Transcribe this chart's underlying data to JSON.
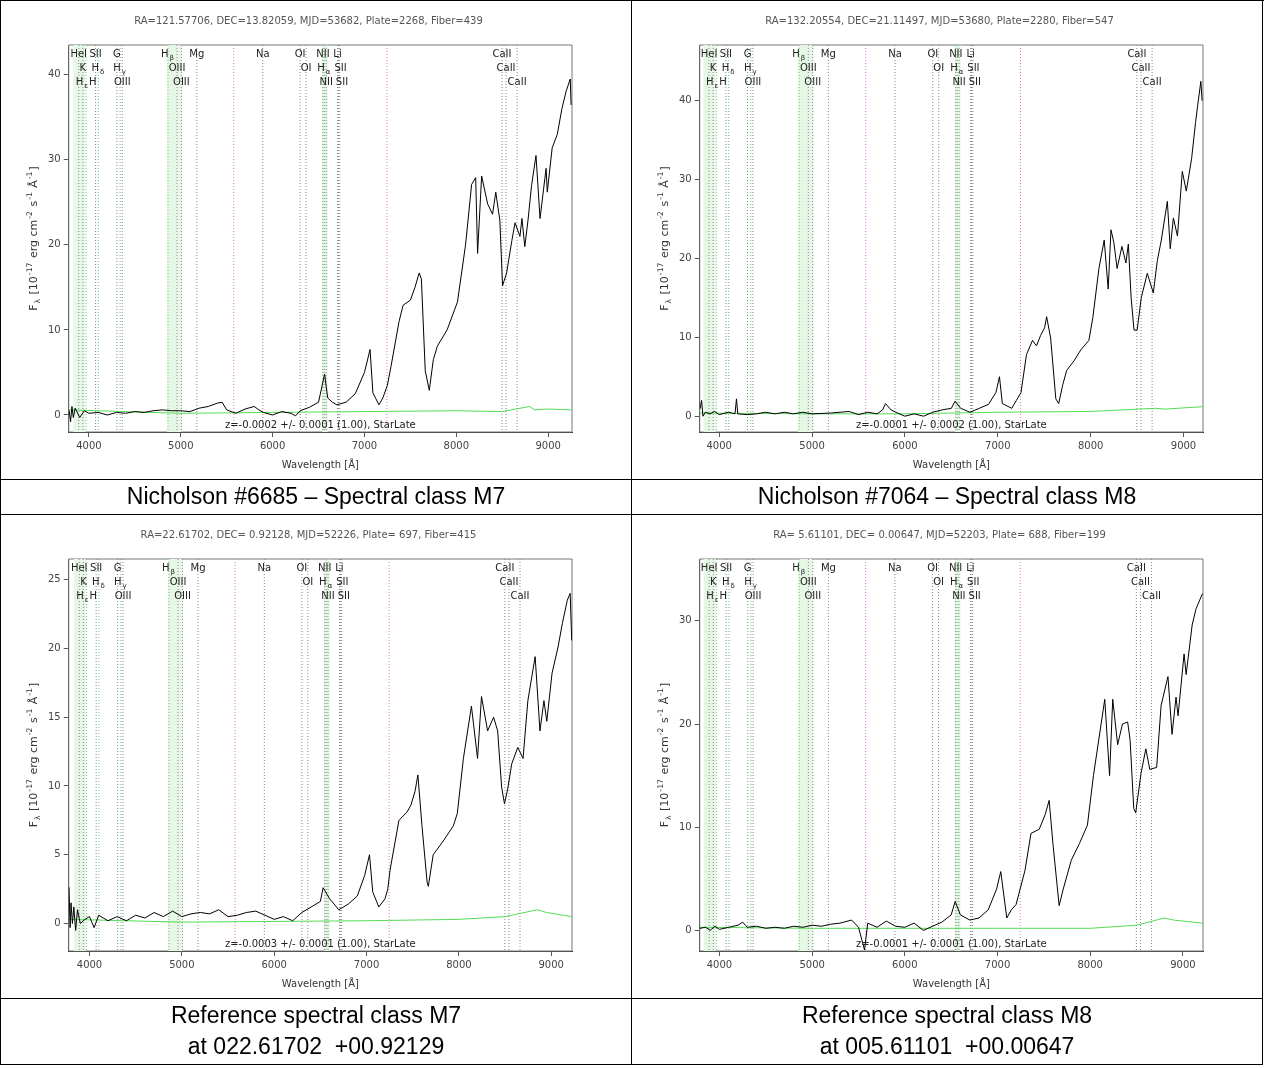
{
  "chart_data": [
    {
      "type": "line",
      "title": "RA=121.57706, DEC=13.82059, MJD=53682, Plate=2268, Fiber=439",
      "xlabel": "Wavelength [Å]",
      "ylabel": "F$_{λ}$ [10$^{-17}$ erg cm$^{-2}$ s$^{-1}$ Å$^{-1}$]",
      "marker": "none",
      "line_style": "solid",
      "xlim": [
        3780,
        9260
      ],
      "xticks": [
        4000,
        5000,
        6000,
        7000,
        8000,
        9000
      ],
      "ylim": [
        -2,
        43.5
      ],
      "yticks": [
        0,
        10,
        20,
        30,
        40
      ],
      "series": [
        {
          "color": "#000000",
          "x": [
            3785,
            3800,
            3815,
            3830,
            3850,
            3900,
            3950,
            4000,
            4100,
            4200,
            4300,
            4400,
            4500,
            4600,
            4700,
            4800,
            4900,
            5000,
            5100,
            5200,
            5300,
            5400,
            5450,
            5500,
            5600,
            5700,
            5800,
            5850,
            5900,
            6000,
            6100,
            6200,
            6250,
            6300,
            6400,
            6500,
            6566,
            6600,
            6650,
            6700,
            6800,
            6900,
            7000,
            7061,
            7092,
            7158,
            7200,
            7250,
            7289,
            7377,
            7421,
            7500,
            7550,
            7596,
            7620,
            7662,
            7706,
            7750,
            7794,
            7900,
            8013,
            8101,
            8167,
            8211,
            8232,
            8276,
            8342,
            8395,
            8430,
            8474,
            8504,
            8548,
            8605,
            8640,
            8693,
            8715,
            8746,
            8781,
            8820,
            8868,
            8912,
            8978,
            8991,
            9044,
            9100,
            9150,
            9197,
            9241,
            9250
          ],
          "values": [
            0.5,
            -0.8,
            1.0,
            -0.3,
            0.8,
            -0.3,
            0.5,
            0.2,
            0.3,
            0.0,
            0.3,
            0.2,
            0.4,
            0.3,
            0.5,
            0.6,
            0.5,
            0.5,
            0.4,
            0.8,
            1.0,
            1.4,
            1.5,
            0.6,
            0.2,
            0.7,
            1.0,
            0.6,
            0.3,
            0.0,
            0.4,
            0.2,
            -0.1,
            0.5,
            0.9,
            1.5,
            4.8,
            2.0,
            1.5,
            1.2,
            1.5,
            2.5,
            5.0,
            7.7,
            2.6,
            1.2,
            2.0,
            3.5,
            5.7,
            11.0,
            12.9,
            13.5,
            15.0,
            16.7,
            16.0,
            5.2,
            2.9,
            6.5,
            8.1,
            10.0,
            13.3,
            20.0,
            27.1,
            27.9,
            19.0,
            28.1,
            24.8,
            23.6,
            26.2,
            22.9,
            15.2,
            16.7,
            20.5,
            22.6,
            21.0,
            23.1,
            19.8,
            22.9,
            27.0,
            30.5,
            23.1,
            29.0,
            26.2,
            31.4,
            33.0,
            36.0,
            38.1,
            39.5,
            36.5
          ]
        },
        {
          "color": "#55dd55",
          "x": [
            3785,
            5000,
            6000,
            7000,
            8000,
            8500,
            8800,
            8850,
            9000,
            9250
          ],
          "values": [
            0.6,
            0.2,
            0.3,
            0.4,
            0.5,
            0.4,
            1.0,
            0.6,
            0.7,
            0.6
          ]
        }
      ],
      "bands": [
        {
          "axis": "x",
          "from": 3830,
          "to": 3960,
          "color": "#e6f7e6"
        },
        {
          "axis": "x",
          "from": 4850,
          "to": 5010,
          "color": "#e6f7e6"
        },
        {
          "axis": "x",
          "from": 6540,
          "to": 6600,
          "color": "#e6f7e6"
        }
      ],
      "ref_lines": [
        {
          "axis": "x",
          "value": 3889,
          "label": "HeI",
          "color": "#888888",
          "line_style": "dotted"
        },
        {
          "axis": "x",
          "value": 3934,
          "label": "K",
          "color": "#888888",
          "line_style": "dotted"
        },
        {
          "axis": "x",
          "value": 3969,
          "label": "H$_{ε}$H",
          "color": "#66cc66",
          "line_style": "dotted"
        },
        {
          "axis": "x",
          "value": 4072,
          "label": "SII",
          "color": "#888888",
          "line_style": "dotted"
        },
        {
          "axis": "x",
          "value": 4102,
          "label": "H$_{δ}$",
          "color": "#66cc66",
          "line_style": "dotted"
        },
        {
          "axis": "x",
          "value": 4305,
          "label": "G",
          "color": "#888888",
          "line_style": "dotted"
        },
        {
          "axis": "x",
          "value": 4340,
          "label": "H$_{γ}$",
          "color": "#66cc66",
          "line_style": "dotted"
        },
        {
          "axis": "x",
          "value": 4363,
          "label": "OIII",
          "color": "#888888",
          "line_style": "dotted"
        },
        {
          "axis": "x",
          "value": 4861,
          "label": "H$_{β}$",
          "color": "#66cc66",
          "line_style": "dotted"
        },
        {
          "axis": "x",
          "value": 4959,
          "label": "OIII",
          "color": "#888888",
          "line_style": "dotted"
        },
        {
          "axis": "x",
          "value": 5007,
          "label": "OIII",
          "color": "#888888",
          "line_style": "dotted"
        },
        {
          "axis": "x",
          "value": 5175,
          "label": "Mg",
          "color": "#888888",
          "line_style": "dotted"
        },
        {
          "axis": "x",
          "value": 5577,
          "label": null,
          "color": "#dd77dd",
          "line_style": "dotted"
        },
        {
          "axis": "x",
          "value": 5893,
          "label": "Na",
          "color": "#888888",
          "line_style": "dotted"
        },
        {
          "axis": "x",
          "value": 6300,
          "label": "OI",
          "color": "#888888",
          "line_style": "dotted"
        },
        {
          "axis": "x",
          "value": 6364,
          "label": "OI",
          "color": "#888888",
          "line_style": "dotted"
        },
        {
          "axis": "x",
          "value": 6548,
          "label": "NII",
          "color": "#888888",
          "line_style": "dotted"
        },
        {
          "axis": "x",
          "value": 6563,
          "label": "H$_{α}$",
          "color": "#66cc66",
          "line_style": "dotted"
        },
        {
          "axis": "x",
          "value": 6583,
          "label": "NII",
          "color": "#888888",
          "line_style": "dotted"
        },
        {
          "axis": "x",
          "value": 6707,
          "label": "Li",
          "color": "#888888",
          "line_style": "dotted"
        },
        {
          "axis": "x",
          "value": 6716,
          "label": "SII",
          "color": "#888888",
          "line_style": "dotted"
        },
        {
          "axis": "x",
          "value": 6731,
          "label": "SII",
          "color": "#888888",
          "line_style": "dotted"
        },
        {
          "axis": "x",
          "value": 7245,
          "label": null,
          "color": "#dd77dd",
          "line_style": "dotted"
        },
        {
          "axis": "x",
          "value": 8498,
          "label": "CaII",
          "color": "#888888",
          "line_style": "dotted"
        },
        {
          "axis": "x",
          "value": 8542,
          "label": "CaII",
          "color": "#888888",
          "line_style": "dotted"
        },
        {
          "axis": "x",
          "value": 8662,
          "label": "CaII",
          "color": "#888888",
          "line_style": "dotted"
        }
      ],
      "annotations": [
        "z=-0.0002 +/- 0.0001 (1.00), StarLate",
        "Nicholson #6685 – Spectral class M7"
      ]
    },
    {
      "type": "line",
      "title": "RA=132.20554, DEC=21.11497, MJD=53680, Plate=2280, Fiber=547",
      "xlabel": "Wavelength [Å]",
      "ylabel": "F$_{λ}$ [10$^{-17}$ erg cm$^{-2}$ s$^{-1}$ Å$^{-1}$]",
      "marker": "none",
      "line_style": "solid",
      "xlim": [
        3790,
        9210
      ],
      "xticks": [
        4000,
        5000,
        6000,
        7000,
        8000,
        9000
      ],
      "ylim": [
        -2,
        47
      ],
      "yticks": [
        0,
        10,
        20,
        30,
        40
      ],
      "series": [
        {
          "color": "#000000",
          "x": [
            3795,
            3810,
            3825,
            3850,
            3900,
            3950,
            4000,
            4100,
            4170,
            4186,
            4200,
            4300,
            4400,
            4500,
            4600,
            4700,
            4800,
            4900,
            5000,
            5200,
            5400,
            5500,
            5600,
            5700,
            5760,
            5791,
            5850,
            5900,
            6000,
            6100,
            6200,
            6300,
            6400,
            6500,
            6540,
            6600,
            6700,
            6800,
            6900,
            6980,
            7018,
            7049,
            7150,
            7200,
            7250,
            7309,
            7374,
            7417,
            7460,
            7504,
            7526,
            7569,
            7625,
            7656,
            7700,
            7742,
            7820,
            7894,
            7981,
            8024,
            8089,
            8146,
            8189,
            8219,
            8250,
            8285,
            8337,
            8380,
            8406,
            8436,
            8467,
            8501,
            8545,
            8610,
            8675,
            8718,
            8761,
            8826,
            8857,
            8891,
            8935,
            8987,
            9030,
            9087,
            9130,
            9152,
            9187,
            9200
          ],
          "values": [
            1.0,
            2.0,
            0.0,
            0.5,
            0.3,
            0.6,
            0.2,
            0.5,
            0.3,
            2.2,
            0.3,
            0.2,
            0.3,
            0.5,
            0.3,
            0.5,
            0.3,
            0.5,
            0.3,
            0.4,
            0.6,
            0.2,
            0.5,
            0.3,
            0.8,
            1.6,
            0.8,
            0.5,
            0.0,
            0.3,
            0.0,
            0.5,
            0.8,
            1.0,
            1.9,
            1.0,
            0.5,
            1.0,
            1.5,
            3.0,
            5.0,
            1.6,
            1.0,
            2.0,
            3.0,
            7.8,
            9.6,
            8.9,
            10.2,
            11.2,
            12.6,
            9.9,
            2.2,
            1.6,
            4.0,
            5.8,
            7.0,
            8.4,
            9.6,
            12.5,
            18.7,
            22.3,
            16.1,
            23.6,
            22.0,
            18.7,
            21.5,
            19.4,
            21.8,
            15.0,
            10.9,
            10.9,
            15.0,
            18.1,
            15.6,
            19.7,
            22.3,
            27.2,
            21.2,
            25.1,
            22.8,
            31.0,
            28.5,
            32.6,
            37.2,
            39.3,
            42.4,
            40.0
          ]
        },
        {
          "color": "#55dd55",
          "x": [
            3795,
            5000,
            6000,
            7000,
            8000,
            8700,
            8800,
            9200
          ],
          "values": [
            0.4,
            0.3,
            0.3,
            0.5,
            0.6,
            1.0,
            0.9,
            1.2
          ]
        }
      ],
      "bands": [
        {
          "axis": "x",
          "from": 3830,
          "to": 3960,
          "color": "#e6f7e6"
        },
        {
          "axis": "x",
          "from": 4850,
          "to": 5010,
          "color": "#e6f7e6"
        },
        {
          "axis": "x",
          "from": 6540,
          "to": 6600,
          "color": "#e6f7e6"
        }
      ],
      "ref_lines": [
        {
          "axis": "x",
          "value": 3889,
          "label": "HeI",
          "color": "#888888",
          "line_style": "dotted"
        },
        {
          "axis": "x",
          "value": 3934,
          "label": "K",
          "color": "#888888",
          "line_style": "dotted"
        },
        {
          "axis": "x",
          "value": 3969,
          "label": "H$_{ε}$H",
          "color": "#66cc66",
          "line_style": "dotted"
        },
        {
          "axis": "x",
          "value": 4072,
          "label": "SII",
          "color": "#888888",
          "line_style": "dotted"
        },
        {
          "axis": "x",
          "value": 4102,
          "label": "H$_{δ}$",
          "color": "#66cc66",
          "line_style": "dotted"
        },
        {
          "axis": "x",
          "value": 4305,
          "label": "G",
          "color": "#888888",
          "line_style": "dotted"
        },
        {
          "axis": "x",
          "value": 4340,
          "label": "H$_{γ}$",
          "color": "#66cc66",
          "line_style": "dotted"
        },
        {
          "axis": "x",
          "value": 4363,
          "label": "OIII",
          "color": "#888888",
          "line_style": "dotted"
        },
        {
          "axis": "x",
          "value": 4861,
          "label": "H$_{β}$",
          "color": "#66cc66",
          "line_style": "dotted"
        },
        {
          "axis": "x",
          "value": 4959,
          "label": "OIII",
          "color": "#888888",
          "line_style": "dotted"
        },
        {
          "axis": "x",
          "value": 5007,
          "label": "OIII",
          "color": "#888888",
          "line_style": "dotted"
        },
        {
          "axis": "x",
          "value": 5175,
          "label": "Mg",
          "color": "#888888",
          "line_style": "dotted"
        },
        {
          "axis": "x",
          "value": 5577,
          "label": null,
          "color": "#dd77dd",
          "line_style": "dotted"
        },
        {
          "axis": "x",
          "value": 5893,
          "label": "Na",
          "color": "#888888",
          "line_style": "dotted"
        },
        {
          "axis": "x",
          "value": 6300,
          "label": "OI",
          "color": "#888888",
          "line_style": "dotted"
        },
        {
          "axis": "x",
          "value": 6364,
          "label": "OI",
          "color": "#888888",
          "line_style": "dotted"
        },
        {
          "axis": "x",
          "value": 6548,
          "label": "NII",
          "color": "#888888",
          "line_style": "dotted"
        },
        {
          "axis": "x",
          "value": 6563,
          "label": "H$_{α}$",
          "color": "#66cc66",
          "line_style": "dotted"
        },
        {
          "axis": "x",
          "value": 6583,
          "label": "NII",
          "color": "#888888",
          "line_style": "dotted"
        },
        {
          "axis": "x",
          "value": 6707,
          "label": "Li",
          "color": "#888888",
          "line_style": "dotted"
        },
        {
          "axis": "x",
          "value": 6716,
          "label": "SII",
          "color": "#888888",
          "line_style": "dotted"
        },
        {
          "axis": "x",
          "value": 6731,
          "label": "SII",
          "color": "#888888",
          "line_style": "dotted"
        },
        {
          "axis": "x",
          "value": 7245,
          "label": null,
          "color": "#dd77dd",
          "line_style": "dotted"
        },
        {
          "axis": "x",
          "value": 8498,
          "label": "CaII",
          "color": "#888888",
          "line_style": "dotted"
        },
        {
          "axis": "x",
          "value": 8542,
          "label": "CaII",
          "color": "#888888",
          "line_style": "dotted"
        },
        {
          "axis": "x",
          "value": 8662,
          "label": "CaII",
          "color": "#888888",
          "line_style": "dotted"
        }
      ],
      "annotations": [
        "z=-0.0001 +/- 0.0002 (1.00), StarLate",
        "Nicholson #7064 – Spectral class M8"
      ]
    },
    {
      "type": "line",
      "title": "RA=22.61702, DEC= 0.92128, MJD=52226, Plate= 697, Fiber=415",
      "xlabel": "Wavelength [Å]",
      "ylabel": "F$_{λ}$ [10$^{-17}$ erg cm$^{-2}$ s$^{-1}$ Å$^{-1}$]",
      "marker": "none",
      "line_style": "solid",
      "xlim": [
        3775,
        9225
      ],
      "xticks": [
        4000,
        5000,
        6000,
        7000,
        8000,
        9000
      ],
      "ylim": [
        -2,
        26.5
      ],
      "yticks": [
        0,
        5,
        10,
        15,
        20,
        25
      ],
      "series": [
        {
          "color": "#000000",
          "x": [
            3778,
            3790,
            3800,
            3815,
            3830,
            3850,
            3870,
            3900,
            3950,
            4000,
            4050,
            4100,
            4200,
            4300,
            4400,
            4500,
            4600,
            4700,
            4800,
            4900,
            5000,
            5100,
            5200,
            5300,
            5400,
            5500,
            5600,
            5700,
            5800,
            5900,
            6000,
            6100,
            6200,
            6300,
            6400,
            6500,
            6530,
            6600,
            6700,
            6800,
            6900,
            6980,
            7032,
            7067,
            7133,
            7200,
            7230,
            7255,
            7351,
            7438,
            7480,
            7525,
            7556,
            7599,
            7656,
            7669,
            7722,
            7831,
            7940,
            7983,
            8049,
            8136,
            8202,
            8245,
            8311,
            8376,
            8420,
            8463,
            8494,
            8529,
            8572,
            8638,
            8695,
            8747,
            8826,
            8878,
            8921,
            8952,
            9009,
            9074,
            9120,
            9174,
            9205,
            9222
          ],
          "values": [
            2.6,
            -0.3,
            1.5,
            0.0,
            1.2,
            -0.5,
            1.0,
            0.0,
            0.3,
            0.5,
            -0.3,
            0.6,
            0.2,
            0.5,
            0.2,
            0.6,
            0.4,
            0.8,
            0.5,
            0.9,
            0.5,
            0.7,
            0.8,
            0.7,
            1.0,
            0.5,
            0.6,
            0.8,
            0.9,
            0.6,
            0.3,
            0.5,
            0.2,
            0.8,
            1.2,
            1.6,
            2.6,
            1.8,
            1.0,
            1.4,
            2.0,
            3.5,
            5.0,
            2.3,
            1.2,
            1.8,
            2.5,
            3.9,
            7.5,
            8.1,
            8.6,
            9.6,
            10.8,
            7.2,
            3.0,
            2.7,
            5.0,
            6.0,
            7.1,
            8.0,
            12.0,
            15.8,
            12.0,
            16.5,
            14.0,
            15.0,
            14.0,
            9.9,
            8.7,
            9.8,
            11.6,
            12.8,
            12.0,
            16.2,
            19.4,
            14.0,
            16.2,
            14.7,
            18.2,
            20.1,
            21.8,
            23.5,
            24.0,
            20.6
          ]
        },
        {
          "color": "#55dd55",
          "x": [
            3778,
            5000,
            7000,
            8000,
            8500,
            8850,
            8950,
            9222
          ],
          "values": [
            0.3,
            0.1,
            0.2,
            0.3,
            0.5,
            1.0,
            0.8,
            0.5
          ]
        }
      ],
      "bands": [
        {
          "axis": "x",
          "from": 3830,
          "to": 3960,
          "color": "#e6f7e6"
        },
        {
          "axis": "x",
          "from": 4850,
          "to": 5010,
          "color": "#e6f7e6"
        },
        {
          "axis": "x",
          "from": 6540,
          "to": 6600,
          "color": "#e6f7e6"
        }
      ],
      "ref_lines": [
        {
          "axis": "x",
          "value": 3889,
          "label": "HeI",
          "color": "#888888",
          "line_style": "dotted"
        },
        {
          "axis": "x",
          "value": 3934,
          "label": "K",
          "color": "#888888",
          "line_style": "dotted"
        },
        {
          "axis": "x",
          "value": 3969,
          "label": "H$_{ε}$H",
          "color": "#66cc66",
          "line_style": "dotted"
        },
        {
          "axis": "x",
          "value": 4072,
          "label": "SII",
          "color": "#888888",
          "line_style": "dotted"
        },
        {
          "axis": "x",
          "value": 4102,
          "label": "H$_{δ}$",
          "color": "#66cc66",
          "line_style": "dotted"
        },
        {
          "axis": "x",
          "value": 4305,
          "label": "G",
          "color": "#888888",
          "line_style": "dotted"
        },
        {
          "axis": "x",
          "value": 4340,
          "label": "H$_{γ}$",
          "color": "#66cc66",
          "line_style": "dotted"
        },
        {
          "axis": "x",
          "value": 4363,
          "label": "OIII",
          "color": "#888888",
          "line_style": "dotted"
        },
        {
          "axis": "x",
          "value": 4861,
          "label": "H$_{β}$",
          "color": "#66cc66",
          "line_style": "dotted"
        },
        {
          "axis": "x",
          "value": 4959,
          "label": "OIII",
          "color": "#888888",
          "line_style": "dotted"
        },
        {
          "axis": "x",
          "value": 5007,
          "label": "OIII",
          "color": "#888888",
          "line_style": "dotted"
        },
        {
          "axis": "x",
          "value": 5175,
          "label": "Mg",
          "color": "#888888",
          "line_style": "dotted"
        },
        {
          "axis": "x",
          "value": 5577,
          "label": null,
          "color": "#dd77dd",
          "line_style": "dotted"
        },
        {
          "axis": "x",
          "value": 5893,
          "label": "Na",
          "color": "#888888",
          "line_style": "dotted"
        },
        {
          "axis": "x",
          "value": 6300,
          "label": "OI",
          "color": "#888888",
          "line_style": "dotted"
        },
        {
          "axis": "x",
          "value": 6364,
          "label": "OI",
          "color": "#888888",
          "line_style": "dotted"
        },
        {
          "axis": "x",
          "value": 6548,
          "label": "NII",
          "color": "#888888",
          "line_style": "dotted"
        },
        {
          "axis": "x",
          "value": 6563,
          "label": "H$_{α}$",
          "color": "#66cc66",
          "line_style": "dotted"
        },
        {
          "axis": "x",
          "value": 6583,
          "label": "NII",
          "color": "#888888",
          "line_style": "dotted"
        },
        {
          "axis": "x",
          "value": 6707,
          "label": "Li",
          "color": "#888888",
          "line_style": "dotted"
        },
        {
          "axis": "x",
          "value": 6716,
          "label": "SII",
          "color": "#888888",
          "line_style": "dotted"
        },
        {
          "axis": "x",
          "value": 6731,
          "label": "SII",
          "color": "#888888",
          "line_style": "dotted"
        },
        {
          "axis": "x",
          "value": 7245,
          "label": null,
          "color": "#dd77dd",
          "line_style": "dotted"
        },
        {
          "axis": "x",
          "value": 8498,
          "label": "CaII",
          "color": "#888888",
          "line_style": "dotted"
        },
        {
          "axis": "x",
          "value": 8542,
          "label": "CaII",
          "color": "#888888",
          "line_style": "dotted"
        },
        {
          "axis": "x",
          "value": 8662,
          "label": "CaII",
          "color": "#888888",
          "line_style": "dotted"
        }
      ],
      "annotations": [
        "z=-0.0003 +/- 0.0001 (1.00), StarLate",
        "Reference spectral class M7",
        "at 022.61702  +00.92129"
      ]
    },
    {
      "type": "line",
      "title": "RA= 5.61101, DEC= 0.00647, MJD=52203, Plate= 688, Fiber=199",
      "xlabel": "Wavelength [Å]",
      "ylabel": "F$_{λ}$ [10$^{-17}$ erg cm$^{-2}$ s$^{-1}$ Å$^{-1}$]",
      "marker": "none",
      "line_style": "solid",
      "xlim": [
        3787,
        9217
      ],
      "xticks": [
        4000,
        5000,
        6000,
        7000,
        8000,
        9000
      ],
      "ylim": [
        -2,
        36
      ],
      "yticks": [
        0,
        10,
        20,
        30
      ],
      "series": [
        {
          "color": "#000000",
          "x": [
            3790,
            3850,
            3900,
            3950,
            4000,
            4100,
            4200,
            4250,
            4300,
            4400,
            4500,
            4600,
            4700,
            4800,
            4900,
            5000,
            5100,
            5200,
            5300,
            5426,
            5500,
            5565,
            5600,
            5700,
            5800,
            5900,
            6000,
            6100,
            6200,
            6300,
            6400,
            6500,
            6543,
            6600,
            6700,
            6800,
            6900,
            6990,
            7035,
            7100,
            7150,
            7200,
            7296,
            7361,
            7450,
            7513,
            7557,
            7600,
            7665,
            7709,
            7796,
            7883,
            7970,
            8035,
            8157,
            8209,
            8243,
            8296,
            8348,
            8404,
            8430,
            8470,
            8491,
            8548,
            8600,
            8643,
            8717,
            8765,
            8839,
            8883,
            8926,
            8948,
            9013,
            9035,
            9100,
            9143,
            9209
          ],
          "values": [
            0.2,
            0.3,
            0.0,
            0.4,
            0.1,
            0.3,
            0.5,
            0.8,
            0.3,
            0.4,
            0.2,
            0.3,
            0.2,
            0.4,
            0.3,
            0.5,
            0.4,
            0.6,
            0.7,
            1.0,
            0.3,
            -1.9,
            0.7,
            0.3,
            0.9,
            0.4,
            0.3,
            0.7,
            0.0,
            0.4,
            0.8,
            1.5,
            2.8,
            1.5,
            1.0,
            1.2,
            2.0,
            4.0,
            5.7,
            1.2,
            2.0,
            2.5,
            5.8,
            9.4,
            9.8,
            11.2,
            12.6,
            8.2,
            2.4,
            4.0,
            6.8,
            8.4,
            10.2,
            15.0,
            22.4,
            15.0,
            22.4,
            18.0,
            20.0,
            20.2,
            18.5,
            11.8,
            11.4,
            15.2,
            17.6,
            15.6,
            15.8,
            21.8,
            24.6,
            19.0,
            22.6,
            20.8,
            26.8,
            24.8,
            29.6,
            31.2,
            32.6
          ]
        },
        {
          "color": "#55dd55",
          "x": [
            3790,
            5000,
            7000,
            8000,
            8500,
            8800,
            8900,
            9209
          ],
          "values": [
            0.3,
            0.2,
            0.2,
            0.2,
            0.5,
            1.2,
            1.0,
            0.7
          ]
        }
      ],
      "bands": [
        {
          "axis": "x",
          "from": 3830,
          "to": 3960,
          "color": "#e6f7e6"
        },
        {
          "axis": "x",
          "from": 4850,
          "to": 5010,
          "color": "#e6f7e6"
        },
        {
          "axis": "x",
          "from": 6540,
          "to": 6600,
          "color": "#e6f7e6"
        }
      ],
      "ref_lines": [
        {
          "axis": "x",
          "value": 3889,
          "label": "HeI",
          "color": "#888888",
          "line_style": "dotted"
        },
        {
          "axis": "x",
          "value": 3934,
          "label": "K",
          "color": "#888888",
          "line_style": "dotted"
        },
        {
          "axis": "x",
          "value": 3969,
          "label": "H$_{ε}$H",
          "color": "#66cc66",
          "line_style": "dotted"
        },
        {
          "axis": "x",
          "value": 4072,
          "label": "SII",
          "color": "#888888",
          "line_style": "dotted"
        },
        {
          "axis": "x",
          "value": 4102,
          "label": "H$_{δ}$",
          "color": "#66cc66",
          "line_style": "dotted"
        },
        {
          "axis": "x",
          "value": 4305,
          "label": "G",
          "color": "#888888",
          "line_style": "dotted"
        },
        {
          "axis": "x",
          "value": 4340,
          "label": "H$_{γ}$",
          "color": "#66cc66",
          "line_style": "dotted"
        },
        {
          "axis": "x",
          "value": 4363,
          "label": "OIII",
          "color": "#888888",
          "line_style": "dotted"
        },
        {
          "axis": "x",
          "value": 4861,
          "label": "H$_{β}$",
          "color": "#66cc66",
          "line_style": "dotted"
        },
        {
          "axis": "x",
          "value": 4959,
          "label": "OIII",
          "color": "#888888",
          "line_style": "dotted"
        },
        {
          "axis": "x",
          "value": 5007,
          "label": "OIII",
          "color": "#888888",
          "line_style": "dotted"
        },
        {
          "axis": "x",
          "value": 5175,
          "label": "Mg",
          "color": "#888888",
          "line_style": "dotted"
        },
        {
          "axis": "x",
          "value": 5577,
          "label": null,
          "color": "#dd77dd",
          "line_style": "dotted"
        },
        {
          "axis": "x",
          "value": 5893,
          "label": "Na",
          "color": "#888888",
          "line_style": "dotted"
        },
        {
          "axis": "x",
          "value": 6300,
          "label": "OI",
          "color": "#888888",
          "line_style": "dotted"
        },
        {
          "axis": "x",
          "value": 6364,
          "label": "OI",
          "color": "#888888",
          "line_style": "dotted"
        },
        {
          "axis": "x",
          "value": 6548,
          "label": "NII",
          "color": "#888888",
          "line_style": "dotted"
        },
        {
          "axis": "x",
          "value": 6563,
          "label": "H$_{α}$",
          "color": "#66cc66",
          "line_style": "dotted"
        },
        {
          "axis": "x",
          "value": 6583,
          "label": "NII",
          "color": "#888888",
          "line_style": "dotted"
        },
        {
          "axis": "x",
          "value": 6707,
          "label": "Li",
          "color": "#888888",
          "line_style": "dotted"
        },
        {
          "axis": "x",
          "value": 6716,
          "label": "SII",
          "color": "#888888",
          "line_style": "dotted"
        },
        {
          "axis": "x",
          "value": 6731,
          "label": "SII",
          "color": "#888888",
          "line_style": "dotted"
        },
        {
          "axis": "x",
          "value": 7245,
          "label": null,
          "color": "#dd77dd",
          "line_style": "dotted"
        },
        {
          "axis": "x",
          "value": 8498,
          "label": "CaII",
          "color": "#888888",
          "line_style": "dotted"
        },
        {
          "axis": "x",
          "value": 8542,
          "label": "CaII",
          "color": "#888888",
          "line_style": "dotted"
        },
        {
          "axis": "x",
          "value": 8662,
          "label": "CaII",
          "color": "#888888",
          "line_style": "dotted"
        }
      ],
      "annotations": [
        "z=-0.0001 +/- 0.0001 (1.00), StarLate",
        "Reference spectral class M8",
        "at 005.61101  +00.00647"
      ]
    }
  ]
}
